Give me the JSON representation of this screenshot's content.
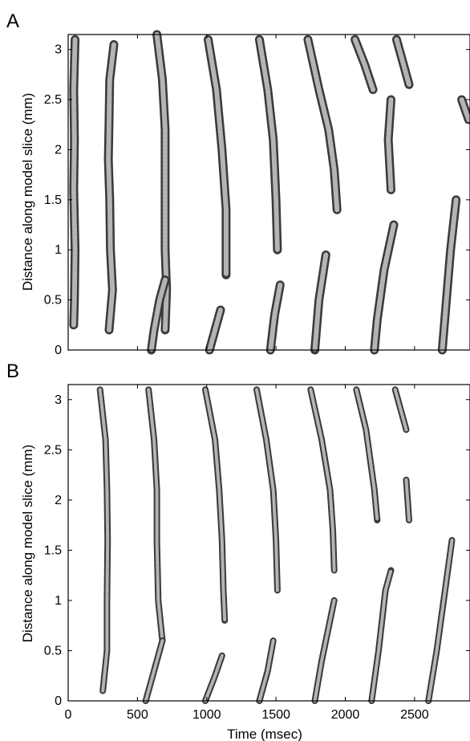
{
  "chart_data": [
    {
      "panel": "A",
      "type": "line",
      "xlabel": "",
      "ylabel": "Distance along model slice (mm)",
      "xlim": [
        0,
        2900
      ],
      "ylim": [
        0,
        3.15
      ],
      "xticks": [],
      "yticks": [
        "0",
        "0.5",
        "1",
        "1.5",
        "2",
        "2.5",
        "3"
      ],
      "series": [
        {
          "points": [
            [
              50,
              3.1
            ],
            [
              40,
              2.6
            ],
            [
              45,
              2.1
            ],
            [
              40,
              1.6
            ],
            [
              50,
              1.0
            ],
            [
              45,
              0.5
            ],
            [
              40,
              0.25
            ]
          ]
        },
        {
          "points": [
            [
              330,
              3.05
            ],
            [
              300,
              2.7
            ],
            [
              295,
              2.3
            ],
            [
              290,
              1.9
            ],
            [
              300,
              1.5
            ],
            [
              305,
              1.0
            ],
            [
              320,
              0.6
            ],
            [
              295,
              0.2
            ]
          ]
        },
        {
          "points": [
            [
              640,
              3.15
            ],
            [
              680,
              2.7
            ],
            [
              700,
              2.2
            ],
            [
              700,
              1.6
            ],
            [
              700,
              1.0
            ],
            [
              710,
              0.6
            ],
            [
              700,
              0.2
            ]
          ]
        },
        {
          "points": [
            [
              1010,
              3.1
            ],
            [
              1070,
              2.6
            ],
            [
              1110,
              2.0
            ],
            [
              1140,
              1.4
            ],
            [
              1140,
              0.75
            ]
          ]
        },
        {
          "points": [
            [
              1380,
              3.1
            ],
            [
              1440,
              2.6
            ],
            [
              1480,
              2.1
            ],
            [
              1500,
              1.5
            ],
            [
              1510,
              1.0
            ]
          ]
        },
        {
          "points": [
            [
              1730,
              3.1
            ],
            [
              1810,
              2.6
            ],
            [
              1880,
              2.2
            ],
            [
              1920,
              1.8
            ],
            [
              1940,
              1.4
            ]
          ]
        },
        {
          "points": [
            [
              2070,
              3.1
            ],
            [
              2140,
              2.85
            ],
            [
              2200,
              2.6
            ]
          ]
        },
        {
          "points": [
            [
              2370,
              3.1
            ],
            [
              2420,
              2.85
            ],
            [
              2460,
              2.65
            ]
          ]
        },
        {
          "points": [
            [
              2330,
              2.5
            ],
            [
              2310,
              2.1
            ],
            [
              2330,
              1.6
            ]
          ]
        },
        {
          "points": [
            [
              2840,
              2.5
            ],
            [
              2890,
              2.3
            ]
          ]
        },
        {
          "points": [
            [
              700,
              0.7
            ],
            [
              660,
              0.5
            ],
            [
              620,
              0.2
            ],
            [
              600,
              0
            ]
          ]
        },
        {
          "points": [
            [
              1100,
              0.4
            ],
            [
              1060,
              0.2
            ],
            [
              1020,
              0
            ]
          ]
        },
        {
          "points": [
            [
              1530,
              0.65
            ],
            [
              1490,
              0.35
            ],
            [
              1460,
              0
            ]
          ]
        },
        {
          "points": [
            [
              1860,
              0.95
            ],
            [
              1810,
              0.5
            ],
            [
              1780,
              0
            ]
          ]
        },
        {
          "points": [
            [
              2350,
              1.25
            ],
            [
              2280,
              0.8
            ],
            [
              2230,
              0.3
            ],
            [
              2210,
              0
            ]
          ]
        },
        {
          "points": [
            [
              2800,
              1.5
            ],
            [
              2760,
              1.0
            ],
            [
              2730,
              0.5
            ],
            [
              2700,
              0
            ]
          ]
        }
      ]
    },
    {
      "panel": "B",
      "type": "line",
      "xlabel": "Time (msec)",
      "ylabel": "Distance along model slice (mm)",
      "xlim": [
        0,
        2900
      ],
      "ylim": [
        0,
        3.15
      ],
      "xticks": [
        "0",
        "500",
        "1000",
        "1500",
        "2000",
        "2500"
      ],
      "yticks": [
        "0",
        "0.5",
        "1",
        "1.5",
        "2",
        "2.5",
        "3"
      ],
      "series": [
        {
          "points": [
            [
              230,
              3.1
            ],
            [
              270,
              2.6
            ],
            [
              280,
              2.1
            ],
            [
              285,
              1.6
            ],
            [
              280,
              1.0
            ],
            [
              280,
              0.5
            ],
            [
              250,
              0.1
            ]
          ]
        },
        {
          "points": [
            [
              580,
              3.1
            ],
            [
              620,
              2.6
            ],
            [
              640,
              2.1
            ],
            [
              640,
              1.6
            ],
            [
              650,
              1.0
            ],
            [
              680,
              0.6
            ]
          ]
        },
        {
          "points": [
            [
              990,
              3.1
            ],
            [
              1060,
              2.6
            ],
            [
              1090,
              2.1
            ],
            [
              1110,
              1.6
            ],
            [
              1120,
              1.1
            ],
            [
              1130,
              0.8
            ]
          ]
        },
        {
          "points": [
            [
              1360,
              3.1
            ],
            [
              1430,
              2.6
            ],
            [
              1480,
              2.1
            ],
            [
              1500,
              1.6
            ],
            [
              1510,
              1.1
            ]
          ]
        },
        {
          "points": [
            [
              1750,
              3.1
            ],
            [
              1830,
              2.6
            ],
            [
              1890,
              2.1
            ],
            [
              1910,
              1.7
            ],
            [
              1920,
              1.3
            ]
          ]
        },
        {
          "points": [
            [
              2080,
              3.1
            ],
            [
              2150,
              2.7
            ],
            [
              2210,
              2.1
            ],
            [
              2230,
              1.8
            ]
          ]
        },
        {
          "points": [
            [
              2360,
              3.1
            ],
            [
              2440,
              2.7
            ]
          ]
        },
        {
          "points": [
            [
              2440,
              2.2
            ],
            [
              2460,
              1.8
            ]
          ]
        },
        {
          "points": [
            [
              560,
              0
            ],
            [
              620,
              0.3
            ],
            [
              680,
              0.6
            ]
          ]
        },
        {
          "points": [
            [
              990,
              0
            ],
            [
              1060,
              0.25
            ],
            [
              1110,
              0.45
            ]
          ]
        },
        {
          "points": [
            [
              1380,
              0
            ],
            [
              1440,
              0.3
            ],
            [
              1480,
              0.6
            ]
          ]
        },
        {
          "points": [
            [
              1780,
              0
            ],
            [
              1830,
              0.4
            ],
            [
              1890,
              0.8
            ],
            [
              1920,
              1.0
            ]
          ]
        },
        {
          "points": [
            [
              2190,
              0
            ],
            [
              2240,
              0.5
            ],
            [
              2290,
              1.1
            ],
            [
              2330,
              1.3
            ]
          ]
        },
        {
          "points": [
            [
              2600,
              0
            ],
            [
              2660,
              0.5
            ],
            [
              2720,
              1.1
            ],
            [
              2770,
              1.6
            ]
          ]
        }
      ]
    }
  ],
  "labels": {
    "panel_a": "A",
    "panel_b": "B",
    "ylabel": "Distance along model slice (mm)",
    "xlabel": "Time (msec)"
  },
  "colors": {
    "trace_outer": "#3a3a3a",
    "trace_inner": "#b4b4b4",
    "axis": "#000000"
  }
}
